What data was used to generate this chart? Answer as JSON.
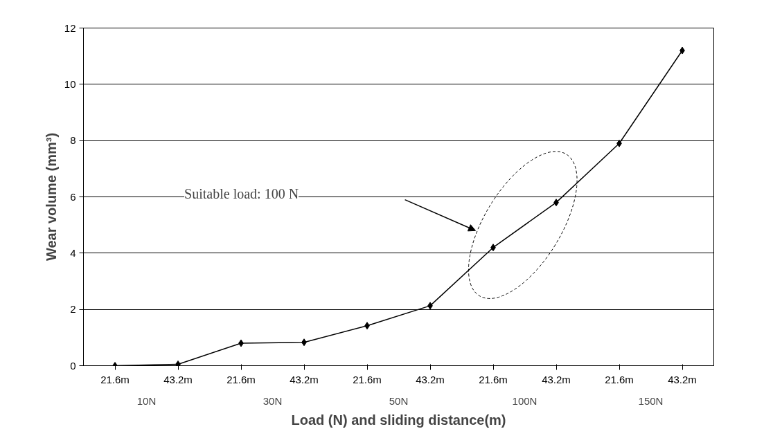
{
  "chart_data": {
    "type": "line",
    "xlabel": "Load (N) and sliding distance(m)",
    "ylabel": "Wear volume (mm³)",
    "categories": [
      "21.6m",
      "43.2m",
      "21.6m",
      "43.2m",
      "21.6m",
      "43.2m",
      "21.6m",
      "43.2m",
      "21.6m",
      "43.2m"
    ],
    "series": [
      {
        "color": "#000000",
        "values": [
          0,
          0.05,
          0.8,
          0.83,
          1.42,
          2.13,
          4.2,
          5.8,
          7.9,
          11.2
        ]
      }
    ],
    "ylim": [
      0,
      12
    ],
    "yticks": [
      0,
      2,
      4,
      6,
      8,
      10,
      12
    ],
    "grid": "y",
    "marker": "diamond",
    "line_style": "solid",
    "annotations": [
      "Suitable load: 100 N",
      "10N",
      "30N",
      "50N",
      "100N",
      "150N"
    ]
  }
}
